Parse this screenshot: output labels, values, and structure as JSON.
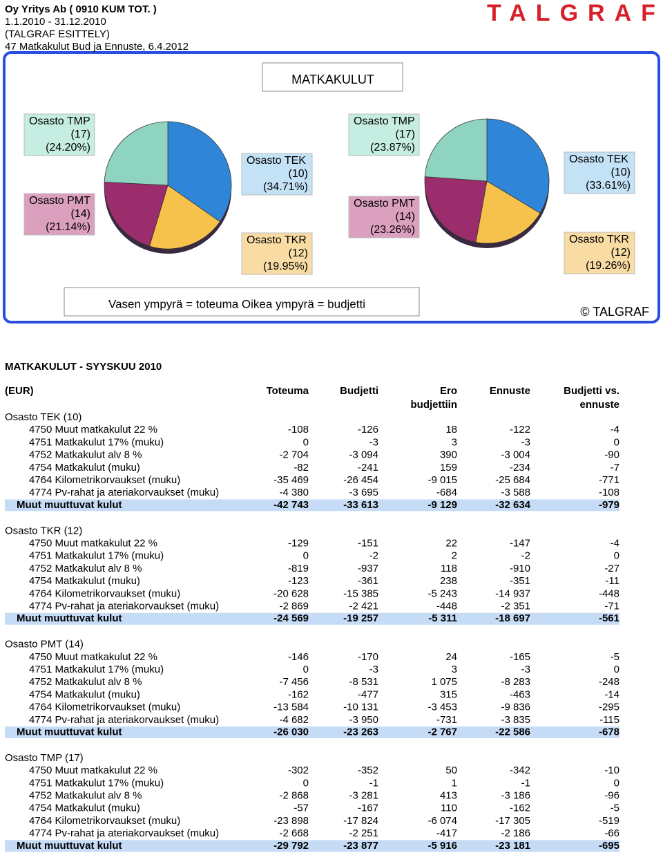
{
  "header": {
    "lines": [
      "Oy Yritys Ab ( 0910  KUM TOT. )",
      "1.1.2010 - 31.12.2010",
      "(TALGRAF ESITTELY)",
      "47 Matkakulut Bud ja Ennuste, 6.4.2012"
    ],
    "logo": "TALGRAF"
  },
  "chart_title": "MATKAKULUT",
  "chart_data": [
    {
      "type": "pie",
      "categories": [
        "Osasto TEK",
        "Osasto TKR",
        "Osasto PMT",
        "Osasto TMP"
      ],
      "codes": [
        "(10)",
        "(12)",
        "(14)",
        "(17)"
      ],
      "values": [
        34.71,
        19.95,
        21.14,
        24.2
      ],
      "value_labels": [
        "(34.71%)",
        "(19.95%)",
        "(21.14%)",
        "(24.20%)"
      ],
      "colors": [
        "#2f86d8",
        "#f6c24c",
        "#9c2d6c",
        "#8fd4c0"
      ]
    },
    {
      "type": "pie",
      "categories": [
        "Osasto TEK",
        "Osasto TKR",
        "Osasto PMT",
        "Osasto TMP"
      ],
      "codes": [
        "(10)",
        "(12)",
        "(14)",
        "(17)"
      ],
      "values": [
        33.61,
        19.26,
        23.26,
        23.87
      ],
      "value_labels": [
        "(33.61%)",
        "(19.26%)",
        "(23.26%)",
        "(23.87%)"
      ],
      "colors": [
        "#2f86d8",
        "#f6c24c",
        "#9c2d6c",
        "#8fd4c0"
      ]
    }
  ],
  "legend_note": "Vasen ympyrä = toteuma  Oikea ympyrä = budjetti",
  "copyright": "© TALGRAF",
  "table": {
    "title": "MATKAKULUT - SYYSKUU 2010",
    "columns": [
      [
        "(EUR)"
      ],
      [
        "Toteuma"
      ],
      [
        "Budjetti"
      ],
      [
        "Ero",
        "budjettiin"
      ],
      [
        "Ennuste"
      ],
      [
        "Budjetti vs.",
        "ennuste"
      ]
    ],
    "sections": [
      {
        "title": "Osasto TEK (10)",
        "rows": [
          [
            "4750 Muut matkakulut 22 %",
            "-108",
            "-126",
            "18",
            "-122",
            "-4"
          ],
          [
            "4751 Matkakulut 17% (muku)",
            "0",
            "-3",
            "3",
            "-3",
            "0"
          ],
          [
            "4752 Matkakulut alv 8 %",
            "-2 704",
            "-3 094",
            "390",
            "-3 004",
            "-90"
          ],
          [
            "4754 Matkakulut (muku)",
            "-82",
            "-241",
            "159",
            "-234",
            "-7"
          ],
          [
            "4764 Kilometrikorvaukset (muku)",
            "-35 469",
            "-26 454",
            "-9 015",
            "-25 684",
            "-771"
          ],
          [
            "4774 Pv-rahat ja ateriakorvaukset (muku)",
            "-4 380",
            "-3 695",
            "-684",
            "-3 588",
            "-108"
          ]
        ],
        "total": [
          "Muut muuttuvat kulut",
          "-42 743",
          "-33 613",
          "-9 129",
          "-32 634",
          "-979"
        ]
      },
      {
        "title": "Osasto TKR (12)",
        "rows": [
          [
            "4750 Muut matkakulut 22 %",
            "-129",
            "-151",
            "22",
            "-147",
            "-4"
          ],
          [
            "4751 Matkakulut 17% (muku)",
            "0",
            "-2",
            "2",
            "-2",
            "0"
          ],
          [
            "4752 Matkakulut alv 8 %",
            "-819",
            "-937",
            "118",
            "-910",
            "-27"
          ],
          [
            "4754 Matkakulut (muku)",
            "-123",
            "-361",
            "238",
            "-351",
            "-11"
          ],
          [
            "4764 Kilometrikorvaukset (muku)",
            "-20 628",
            "-15 385",
            "-5 243",
            "-14 937",
            "-448"
          ],
          [
            "4774 Pv-rahat ja ateriakorvaukset (muku)",
            "-2 869",
            "-2 421",
            "-448",
            "-2 351",
            "-71"
          ]
        ],
        "total": [
          "Muut muuttuvat kulut",
          "-24 569",
          "-19 257",
          "-5 311",
          "-18 697",
          "-561"
        ]
      },
      {
        "title": "Osasto PMT (14)",
        "rows": [
          [
            "4750 Muut matkakulut 22 %",
            "-146",
            "-170",
            "24",
            "-165",
            "-5"
          ],
          [
            "4751 Matkakulut 17% (muku)",
            "0",
            "-3",
            "3",
            "-3",
            "0"
          ],
          [
            "4752 Matkakulut alv 8 %",
            "-7 456",
            "-8 531",
            "1 075",
            "-8 283",
            "-248"
          ],
          [
            "4754 Matkakulut (muku)",
            "-162",
            "-477",
            "315",
            "-463",
            "-14"
          ],
          [
            "4764 Kilometrikorvaukset (muku)",
            "-13 584",
            "-10 131",
            "-3 453",
            "-9 836",
            "-295"
          ],
          [
            "4774 Pv-rahat ja ateriakorvaukset (muku)",
            "-4 682",
            "-3 950",
            "-731",
            "-3 835",
            "-115"
          ]
        ],
        "total": [
          "Muut muuttuvat kulut",
          "-26 030",
          "-23 263",
          "-2 767",
          "-22 586",
          "-678"
        ]
      },
      {
        "title": "Osasto TMP (17)",
        "rows": [
          [
            "4750 Muut matkakulut 22 %",
            "-302",
            "-352",
            "50",
            "-342",
            "-10"
          ],
          [
            "4751 Matkakulut 17% (muku)",
            "0",
            "-1",
            "1",
            "-1",
            "0"
          ],
          [
            "4752 Matkakulut alv 8 %",
            "-2 868",
            "-3 281",
            "413",
            "-3 186",
            "-96"
          ],
          [
            "4754 Matkakulut (muku)",
            "-57",
            "-167",
            "110",
            "-162",
            "-5"
          ],
          [
            "4764 Kilometrikorvaukset (muku)",
            "-23 898",
            "-17 824",
            "-6 074",
            "-17 305",
            "-519"
          ],
          [
            "4774 Pv-rahat ja ateriakorvaukset (muku)",
            "-2 668",
            "-2 251",
            "-417",
            "-2 186",
            "-66"
          ]
        ],
        "total": [
          "Muut muuttuvat kulut",
          "-29 792",
          "-23 877",
          "-5 916",
          "-23 181",
          "-695"
        ]
      }
    ]
  }
}
